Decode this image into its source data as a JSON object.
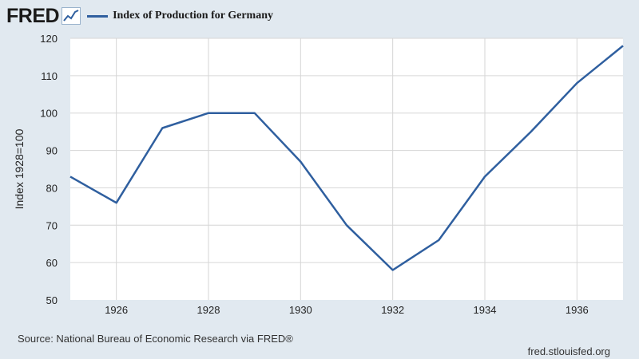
{
  "header": {
    "logo_text": "FRED",
    "logo_icon": "chart-line-icon"
  },
  "colors": {
    "background": "#e1e9f0",
    "plot_background": "#ffffff",
    "series_line": "#2f5f9f",
    "grid": "#d6d6d6"
  },
  "chart_data": {
    "type": "line",
    "title": "",
    "xlabel": "",
    "ylabel": "Index 1928=100",
    "x_ticks": [
      "1926",
      "1928",
      "1930",
      "1932",
      "1934",
      "1936"
    ],
    "y_ticks": [
      "50",
      "60",
      "70",
      "80",
      "90",
      "100",
      "110",
      "120"
    ],
    "xlim": [
      1925,
      1937
    ],
    "ylim": [
      50,
      120
    ],
    "grid": true,
    "legend": "top-left",
    "series": [
      {
        "name": "Index of Production for Germany",
        "x": [
          1925,
          1926,
          1927,
          1928,
          1929,
          1930,
          1931,
          1932,
          1933,
          1934,
          1935,
          1936,
          1937
        ],
        "values": [
          83,
          76,
          96,
          100,
          100,
          87,
          70,
          58,
          66,
          83,
          95,
          108,
          118
        ]
      }
    ]
  },
  "footer": {
    "source": "Source: National Bureau of Economic Research via FRED®",
    "url": "fred.stlouisfed.org"
  }
}
